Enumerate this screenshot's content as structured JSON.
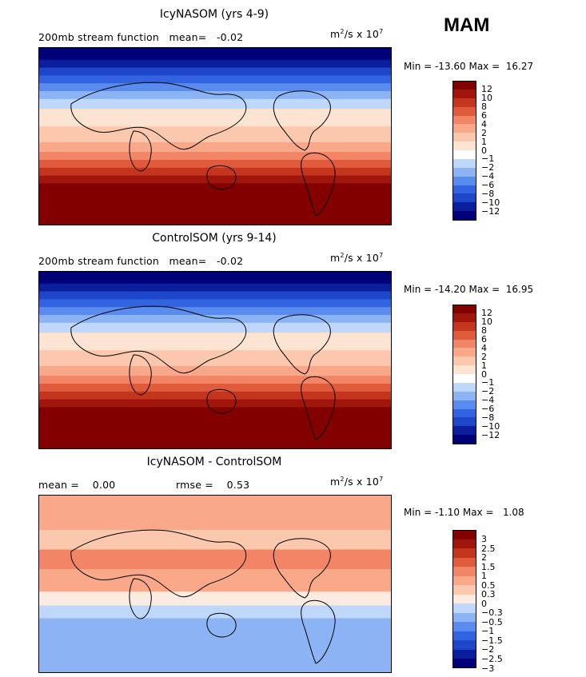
{
  "season": "MAM",
  "palette": {
    "p15": [
      "#000078",
      "#0a1e9e",
      "#1e46c8",
      "#3264e1",
      "#5a8cf0",
      "#8cb4f5",
      "#bed7fa",
      "#ffffff",
      "#fde3d2",
      "#fcc8ad",
      "#f9a98a",
      "#f28566",
      "#e05a3c",
      "#c5351e",
      "#a0150c",
      "#820000"
    ],
    "p14": [
      "#000078",
      "#0a1e9e",
      "#1e46c8",
      "#3264e1",
      "#5a8cf0",
      "#8cb4f5",
      "#bed7fa",
      "#fbebe0",
      "#fcc8ad",
      "#f9a98a",
      "#f28566",
      "#e05a3c",
      "#c5351e",
      "#a0150c",
      "#820000"
    ]
  },
  "chart_data": [
    {
      "type": "heatmap",
      "title": "IcyNASOM (yrs 4-9)",
      "subtitle": "200mb stream function   mean=   -0.02",
      "units_base": "m",
      "units_sup": "2",
      "units_mid": "/s x 10",
      "units_exp": "7",
      "min_max": "Min = -13.60 Max =  16.27",
      "contour_levels": [
        "12",
        "10",
        "8",
        "6",
        "4",
        "2",
        "1",
        "0",
        "-1",
        "-2",
        "-4",
        "-6",
        "-8",
        "-10",
        "-12"
      ],
      "field": {
        "lat_bands": [
          {
            "lat_from": 90,
            "lat_to": 78,
            "value": -14
          },
          {
            "lat_from": 78,
            "lat_to": 70,
            "value": -11
          },
          {
            "lat_from": 70,
            "lat_to": 62,
            "value": -9
          },
          {
            "lat_from": 62,
            "lat_to": 54,
            "value": -7
          },
          {
            "lat_from": 54,
            "lat_to": 46,
            "value": -5
          },
          {
            "lat_from": 46,
            "lat_to": 38,
            "value": -3
          },
          {
            "lat_from": 38,
            "lat_to": 28,
            "value": -1.5
          },
          {
            "lat_from": 28,
            "lat_to": 10,
            "value": 0.5
          },
          {
            "lat_from": 10,
            "lat_to": -6,
            "value": 1.5
          },
          {
            "lat_from": -6,
            "lat_to": -16,
            "value": 3
          },
          {
            "lat_from": -16,
            "lat_to": -24,
            "value": 5
          },
          {
            "lat_from": -24,
            "lat_to": -32,
            "value": 7
          },
          {
            "lat_from": -32,
            "lat_to": -40,
            "value": 9
          },
          {
            "lat_from": -40,
            "lat_to": -48,
            "value": 11
          },
          {
            "lat_from": -48,
            "lat_to": -90,
            "value": 14
          }
        ]
      }
    },
    {
      "type": "heatmap",
      "title": "ControlSOM (yrs 9-14)",
      "subtitle": "200mb stream function   mean=   -0.02",
      "units_base": "m",
      "units_sup": "2",
      "units_mid": "/s x 10",
      "units_exp": "7",
      "min_max": "Min = -14.20 Max =  16.95",
      "contour_levels": [
        "12",
        "10",
        "8",
        "6",
        "4",
        "2",
        "1",
        "0",
        "-1",
        "-2",
        "-4",
        "-6",
        "-8",
        "-10",
        "-12"
      ],
      "field": {
        "lat_bands": [
          {
            "lat_from": 90,
            "lat_to": 78,
            "value": -14
          },
          {
            "lat_from": 78,
            "lat_to": 70,
            "value": -11
          },
          {
            "lat_from": 70,
            "lat_to": 62,
            "value": -9
          },
          {
            "lat_from": 62,
            "lat_to": 54,
            "value": -7
          },
          {
            "lat_from": 54,
            "lat_to": 46,
            "value": -5
          },
          {
            "lat_from": 46,
            "lat_to": 38,
            "value": -3
          },
          {
            "lat_from": 38,
            "lat_to": 28,
            "value": -1.5
          },
          {
            "lat_from": 28,
            "lat_to": 10,
            "value": 0.5
          },
          {
            "lat_from": 10,
            "lat_to": -6,
            "value": 1.5
          },
          {
            "lat_from": -6,
            "lat_to": -16,
            "value": 3
          },
          {
            "lat_from": -16,
            "lat_to": -24,
            "value": 5
          },
          {
            "lat_from": -24,
            "lat_to": -32,
            "value": 7
          },
          {
            "lat_from": -32,
            "lat_to": -40,
            "value": 9
          },
          {
            "lat_from": -40,
            "lat_to": -48,
            "value": 11
          },
          {
            "lat_from": -48,
            "lat_to": -90,
            "value": 14
          }
        ]
      }
    },
    {
      "type": "heatmap",
      "title": "IcyNASOM - ControlSOM",
      "mean_label": "mean =    0.00",
      "rmse_label": "rmse =    0.53",
      "units_base": "m",
      "units_sup": "2",
      "units_mid": "/s x 10",
      "units_exp": "7",
      "min_max": "Min = -1.10 Max =   1.08",
      "contour_levels": [
        "3",
        "2.5",
        "2",
        "1.5",
        "1",
        "0.5",
        "0.3",
        "0",
        "-0.3",
        "-0.5",
        "-1",
        "-1.5",
        "-2",
        "-2.5",
        "-3"
      ],
      "field": {
        "lat_bands": [
          {
            "lat_from": 90,
            "lat_to": 55,
            "value": 0.4
          },
          {
            "lat_from": 55,
            "lat_to": 35,
            "value": 0.2
          },
          {
            "lat_from": 35,
            "lat_to": 15,
            "value": 0.6
          },
          {
            "lat_from": 15,
            "lat_to": -8,
            "value": 0.35
          },
          {
            "lat_from": -8,
            "lat_to": -22,
            "value": -0.2
          },
          {
            "lat_from": -22,
            "lat_to": -35,
            "value": -0.4
          },
          {
            "lat_from": -35,
            "lat_to": -90,
            "value": -0.7
          }
        ]
      }
    }
  ]
}
